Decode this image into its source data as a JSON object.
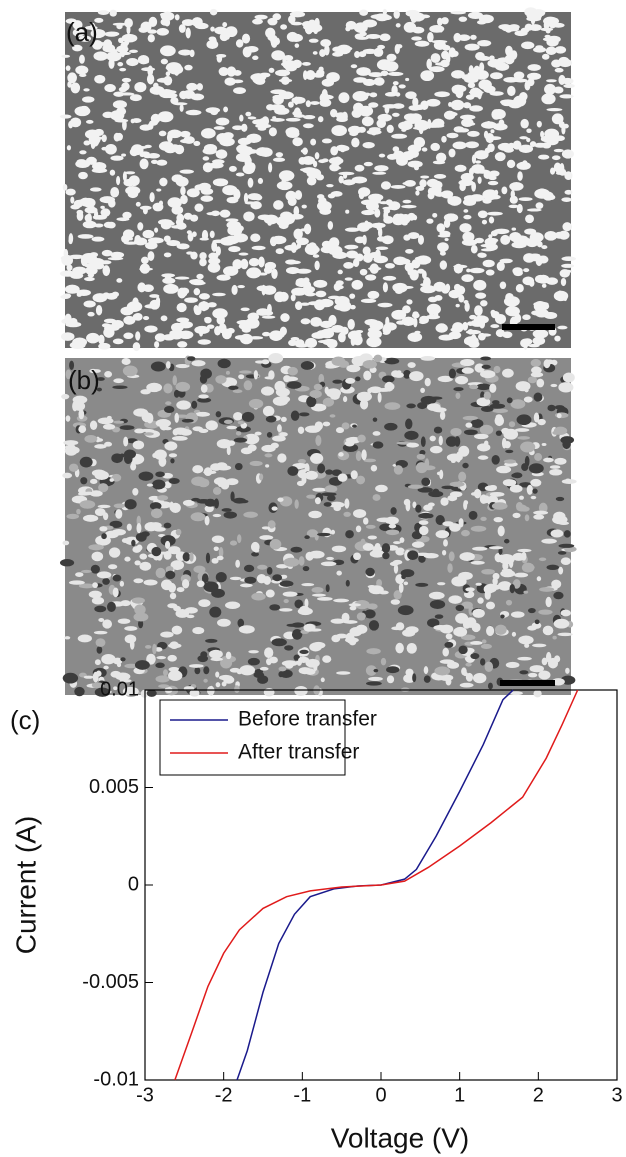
{
  "panels": [
    "(a)",
    "(b)",
    "(c)"
  ],
  "chart_data": {
    "type": "line",
    "x_label": "Voltage (V)",
    "y_label": "Current (A)",
    "xlim": [
      -3,
      3
    ],
    "xticks": [
      -3,
      -2,
      -1,
      0,
      1,
      2,
      3
    ],
    "ylim": [
      -0.01,
      0.01
    ],
    "yticks": [
      -0.01,
      -0.005,
      0,
      0.005,
      0.01
    ],
    "legend": "upper left",
    "series": [
      {
        "name": "Before transfer",
        "color": "#1a1a8c",
        "x": [
          -1.83,
          -1.7,
          -1.5,
          -1.3,
          -1.1,
          -0.9,
          -0.6,
          -0.3,
          0,
          0.3,
          0.45,
          0.7,
          1.0,
          1.3,
          1.55,
          1.68
        ],
        "values": [
          -0.01,
          -0.0085,
          -0.0055,
          -0.003,
          -0.0015,
          -0.0006,
          -0.0002,
          -5e-05,
          0,
          0.0003,
          0.0008,
          0.0025,
          0.0048,
          0.0072,
          0.0095,
          0.01
        ]
      },
      {
        "name": "After transfer",
        "color": "#e01b1b",
        "x": [
          -2.62,
          -2.4,
          -2.2,
          -2.0,
          -1.8,
          -1.5,
          -1.2,
          -0.9,
          -0.5,
          0,
          0.3,
          0.6,
          1.0,
          1.4,
          1.8,
          2.1,
          2.3,
          2.5
        ],
        "values": [
          -0.01,
          -0.0075,
          -0.0052,
          -0.0035,
          -0.0023,
          -0.0012,
          -0.0006,
          -0.0003,
          -0.0001,
          0,
          0.0002,
          0.0009,
          0.002,
          0.0032,
          0.0045,
          0.0065,
          0.0082,
          0.01
        ]
      }
    ]
  }
}
